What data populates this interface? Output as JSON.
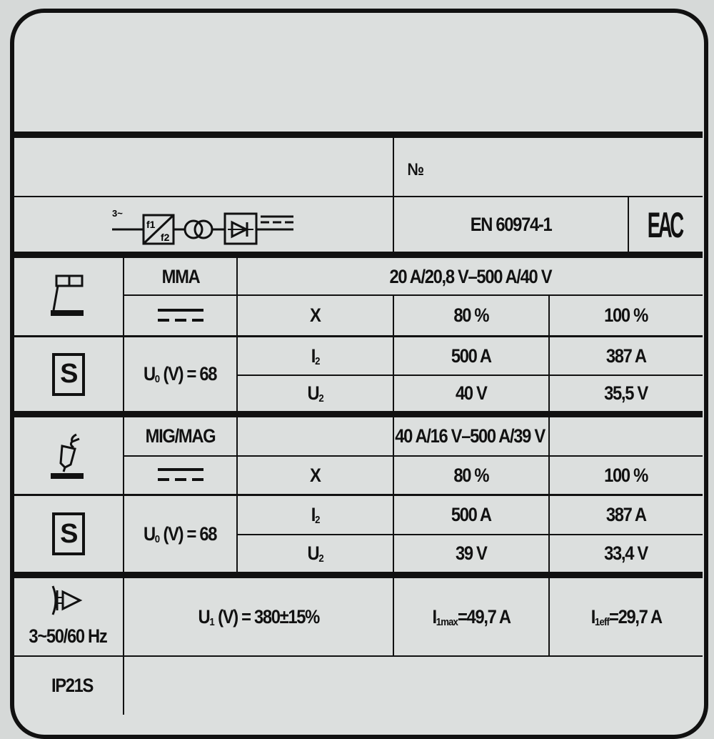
{
  "header": {
    "number_label": "№",
    "standard": "EN 60974-1",
    "certification_mark": "EAC"
  },
  "block_diagram": {
    "input_label": "3~",
    "converter_f1": "f1",
    "converter_f2": "f2"
  },
  "mma": {
    "process": "MMA",
    "range": "20 A/20,8 V–500 A/40 V",
    "duty_label": "X",
    "duty_1": "80 %",
    "duty_2": "100 %",
    "current": {
      "main": "I",
      "sub": "2"
    },
    "current_1": "500 A",
    "current_2": "387 A",
    "voltage": {
      "main": "U",
      "sub": "2"
    },
    "voltage_1": "40 V",
    "voltage_2": "35,5 V",
    "open_circuit": {
      "main": "U",
      "sub": "0",
      "rest": " (V) = 68"
    },
    "safety_symbol": "S"
  },
  "mig": {
    "process": "MIG/MAG",
    "range": "40 A/16 V–500 A/39 V",
    "duty_label": "X",
    "duty_1": "80 %",
    "duty_2": "100 %",
    "current": {
      "main": "I",
      "sub": "2"
    },
    "current_1": "500 A",
    "current_2": "387 A",
    "voltage": {
      "main": "U",
      "sub": "2"
    },
    "voltage_1": "39 V",
    "voltage_2": "33,4 V",
    "open_circuit": {
      "main": "U",
      "sub": "0",
      "rest": " (V) = 68"
    },
    "safety_symbol": "S"
  },
  "supply": {
    "frequency": "3~50/60 Hz",
    "voltage": {
      "main": "U",
      "sub": "1",
      "rest": " (V) = 380±15%"
    },
    "i1max": {
      "main": "I",
      "sub": "1max",
      "rest": "=49,7 A"
    },
    "i1eff": {
      "main": "I",
      "sub": "1eff",
      "rest": "=29,7 A"
    }
  },
  "protection": "IP21S",
  "icons": [
    "mma-electrode-icon",
    "dc-current-icon",
    "safety-s-icon",
    "mig-torch-icon",
    "mains-plug-icon",
    "inverter-diagram-icon"
  ]
}
